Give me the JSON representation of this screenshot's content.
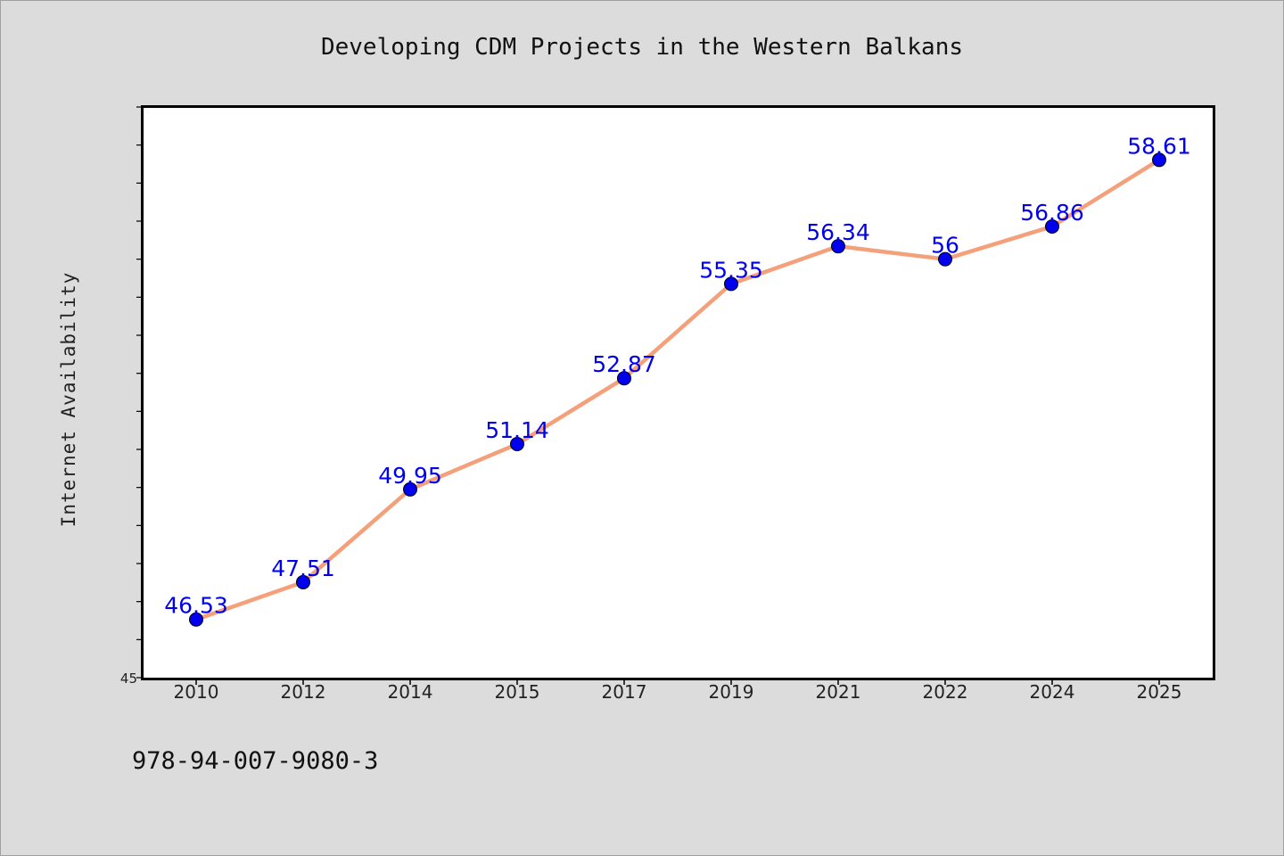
{
  "chart_data": {
    "type": "line",
    "title": "Developing CDM Projects in the Western Balkans",
    "xlabel": "",
    "ylabel": "Internet Availability",
    "categories": [
      "2010",
      "2012",
      "2014",
      "2015",
      "2017",
      "2019",
      "2021",
      "2022",
      "2024",
      "2025"
    ],
    "values": [
      46.53,
      47.51,
      49.95,
      51.14,
      52.87,
      55.35,
      56.34,
      56,
      56.86,
      58.61
    ],
    "data_labels": [
      "46.53",
      "47.51",
      "49.95",
      "51.14",
      "52.87",
      "55.35",
      "56.34",
      "56",
      "56.86",
      "58.61"
    ],
    "ylim": [
      45,
      60
    ],
    "y_tick_labels": [
      "45"
    ],
    "grid": false,
    "legend": "none",
    "colors": {
      "line": "#f4a07a",
      "marker": "#0000ee",
      "labels": "#0000ee"
    }
  },
  "footer": {
    "text": "978-94-007-9080-3"
  }
}
